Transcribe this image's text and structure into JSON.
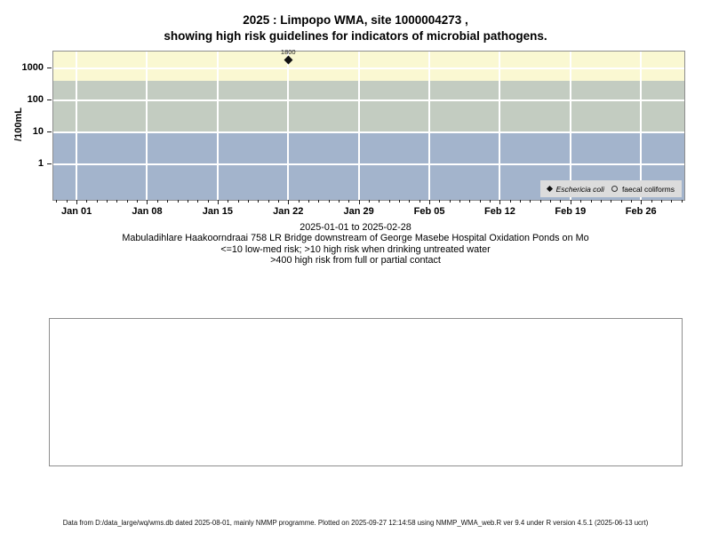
{
  "title": {
    "line1": "2025 : Limpopo WMA, site 1000004273 ,",
    "line2": "showing high risk guidelines for indicators of microbial pathogens."
  },
  "chart_data": {
    "type": "scatter",
    "title": "2025 : Limpopo WMA, site 1000004273 , showing high risk guidelines for indicators of microbial pathogens.",
    "xlabel": "",
    "ylabel": "/100mL",
    "y_scale": "log",
    "ylim": [
      0.075,
      3300
    ],
    "y_ticks": [
      1000,
      100,
      10,
      1
    ],
    "xlim_days": [
      -2.3,
      60.3
    ],
    "x_tick_days": [
      0,
      7,
      14,
      21,
      28,
      35,
      42,
      49,
      56
    ],
    "x_tick_labels": [
      "Jan 01",
      "Jan 08",
      "Jan 15",
      "Jan 22",
      "Jan 29",
      "Feb 05",
      "Feb 12",
      "Feb 19",
      "Feb 26"
    ],
    "minor_tick_day_range": [
      -2,
      60
    ],
    "grid": true,
    "legend_position": "bottom-right",
    "bands": [
      {
        "name": "band-high-risk-contact",
        "from": 400,
        "to": 3300,
        "color": "#faf8d2",
        "meaning": ">400 high risk from full or partial contact"
      },
      {
        "name": "band-high-risk-drinking",
        "from": 10,
        "to": 400,
        "color": "#c3ccc1",
        "meaning": ">10 high risk when drinking untreated water"
      },
      {
        "name": "band-low-med-risk",
        "from": 0.075,
        "to": 10,
        "color": "#a3b4cc",
        "meaning": "<=10 low-med risk"
      }
    ],
    "series": [
      {
        "name": "Eschericia coli",
        "marker": "diamond",
        "italic": true,
        "points": [
          {
            "day": 21,
            "date": "Jan 22",
            "value": 1800,
            "label": "1800"
          }
        ]
      },
      {
        "name": "faecal coliforms",
        "marker": "open-circle",
        "italic": false,
        "points": []
      }
    ]
  },
  "subtitle": {
    "lines": [
      "2025-01-01 to 2025-02-28",
      "Mabuladihlare Haakoorndraai 758 LR Bridge downstream of George Masebe Hospital Oxidation Ponds on Mo",
      "<=10 low-med risk; >10 high risk when drinking untreated water",
      ">400 high risk from full or partial contact"
    ]
  },
  "footer": {
    "text": "Data from D:/data_large/wq/wms.db dated 2025-08-01, mainly NMMP programme. Plotted on 2025-09-27 12:14:58 using NMMP_WMA_web.R ver 9.4 under R version 4.5.1 (2025-06-13 ucrt)"
  },
  "colors": {
    "band_yellow": "#faf8d2",
    "band_green": "#c3ccc1",
    "band_blue": "#a3b4cc",
    "legend_bg": "#dcdcdc",
    "plot_border": "#8e8e8e",
    "gridline": "#ffffff",
    "marker": "#111111"
  }
}
